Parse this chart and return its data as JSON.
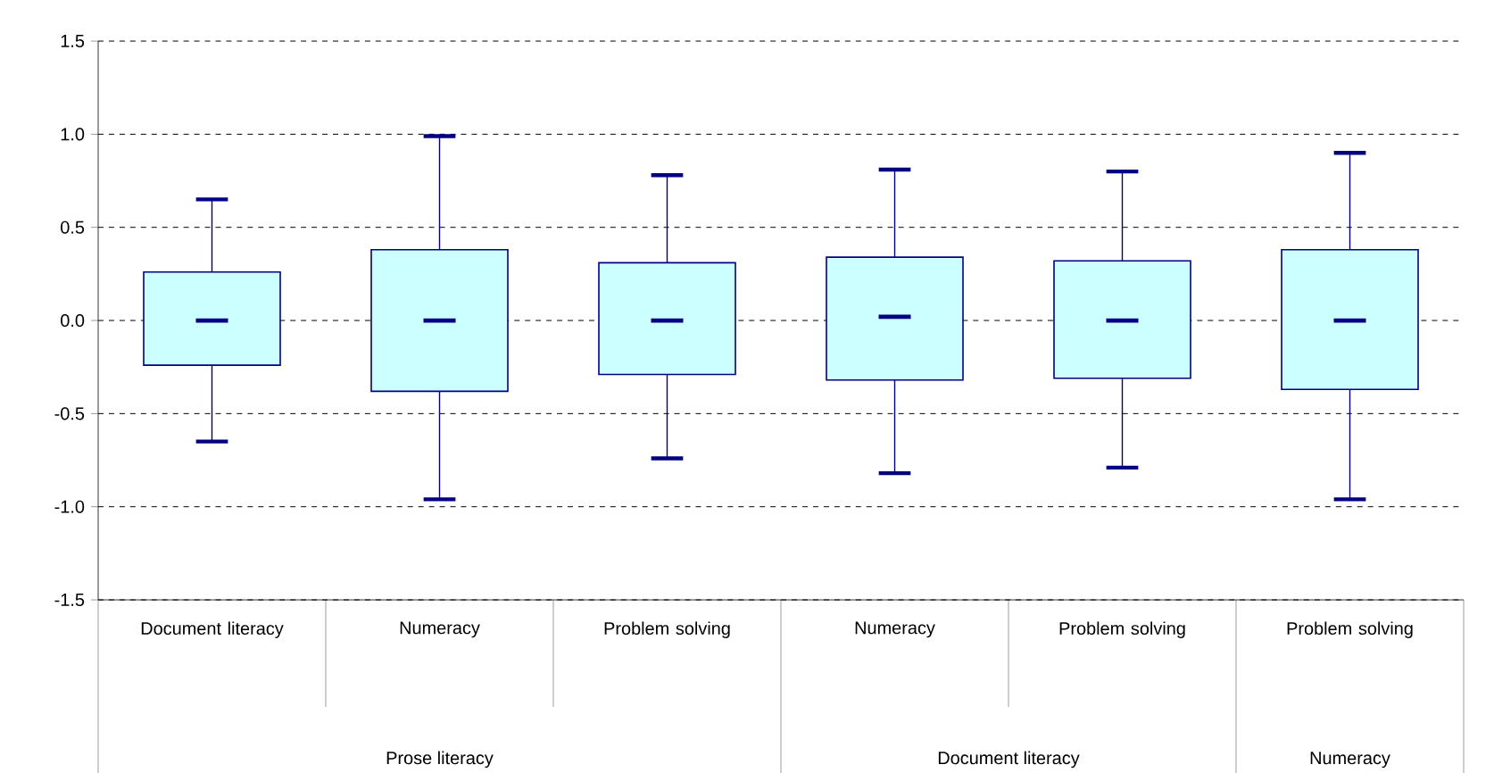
{
  "chart_data": {
    "type": "box",
    "categories": [
      "Document literacy",
      "Numeracy",
      "Problem solving",
      "Numeracy",
      "Problem solving",
      "Problem solving"
    ],
    "boxes": [
      {
        "low": -0.65,
        "q1": -0.24,
        "median": 0.0,
        "q3": 0.26,
        "high": 0.65
      },
      {
        "low": -0.96,
        "q1": -0.38,
        "median": 0.0,
        "q3": 0.38,
        "high": 0.99
      },
      {
        "low": -0.74,
        "q1": -0.29,
        "median": 0.0,
        "q3": 0.31,
        "high": 0.78
      },
      {
        "low": -0.82,
        "q1": -0.32,
        "median": 0.02,
        "q3": 0.34,
        "high": 0.81
      },
      {
        "low": -0.79,
        "q1": -0.31,
        "median": 0.0,
        "q3": 0.32,
        "high": 0.8
      },
      {
        "low": -0.96,
        "q1": -0.37,
        "median": 0.0,
        "q3": 0.38,
        "high": 0.9
      }
    ],
    "color": "#ccffff",
    "annotations": [
      "Prose literacy",
      "Document literacy",
      "Numeracy"
    ],
    "ylim": [
      -1.5,
      1.5
    ],
    "yticks": [
      {
        "value": -1.5,
        "label": "-1.5"
      },
      {
        "value": -1,
        "label": "-1.0"
      },
      {
        "value": -0.5,
        "label": "-0.5"
      },
      {
        "value": 0,
        "label": "0.0"
      },
      {
        "value": 0.5,
        "label": "0.5"
      },
      {
        "value": 1,
        "label": "1.0"
      },
      {
        "value": 1.5,
        "label": "1.5"
      }
    ],
    "grid": "y"
  }
}
